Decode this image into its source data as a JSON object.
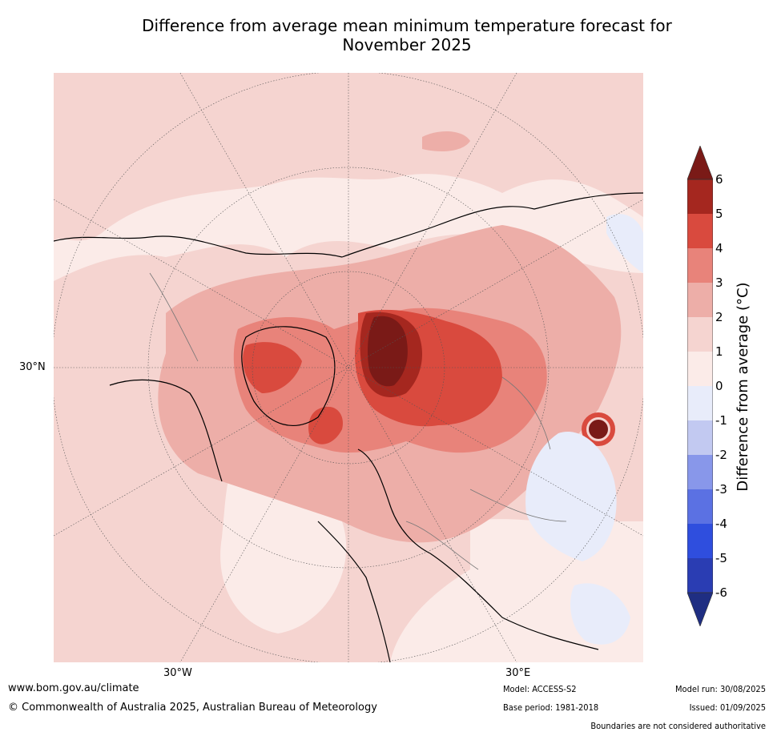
{
  "title": {
    "line1": "Difference from average mean minimum temperature forecast for",
    "line2": "November 2025"
  },
  "map": {
    "projection": "north-polar-stereographic",
    "lat_label": "30°N",
    "lon_labels": [
      "30°W",
      "30°E"
    ],
    "regions": [
      {
        "name": "north-atlantic-pacific-background",
        "value_range": "0 to 1"
      },
      {
        "name": "greenland-canada-arctic-anomaly",
        "value_range": "3 to 6"
      },
      {
        "name": "svalbard-barents-sea-anomaly",
        "value_range": "above 6"
      },
      {
        "name": "siberia-north-russia-anomaly",
        "value_range": "3 to 5"
      },
      {
        "name": "central-asia-hotspot",
        "value_range": "above 6"
      },
      {
        "name": "central-asia-cool-patch",
        "value_range": "-1 to 0"
      }
    ]
  },
  "colorbar": {
    "title": "Difference from average (°C)",
    "ticks": [
      "6",
      "5",
      "4",
      "3",
      "2",
      "1",
      "0",
      "-1",
      "-2",
      "-3",
      "-4",
      "-5",
      "-6"
    ],
    "colors": {
      "above_6": "#7a1a17",
      "5_6": "#a5271f",
      "4_5": "#d94a3e",
      "3_4": "#e8837a",
      "2_3": "#edaea8",
      "1_2": "#f5d4d0",
      "0_1": "#fbebe8",
      "m1_0": "#e8ecfa",
      "m2_m1": "#c2c9f1",
      "m3_m2": "#8897ea",
      "m4_m3": "#5b71e3",
      "m5_m4": "#2f4ede",
      "m6_m5": "#2a3db3",
      "below_m6": "#1f2e82"
    }
  },
  "footer": {
    "website": "www.bom.gov.au/climate",
    "copyright": "© Commonwealth of Australia 2025, Australian Bureau of Meteorology",
    "model": "Model: ACCESS-S2",
    "base_period": "Base period: 1981-2018",
    "model_run": "Model run: 30/08/2025",
    "issued": "Issued: 01/09/2025",
    "disclaimer": "Boundaries are not considered authoritative"
  }
}
